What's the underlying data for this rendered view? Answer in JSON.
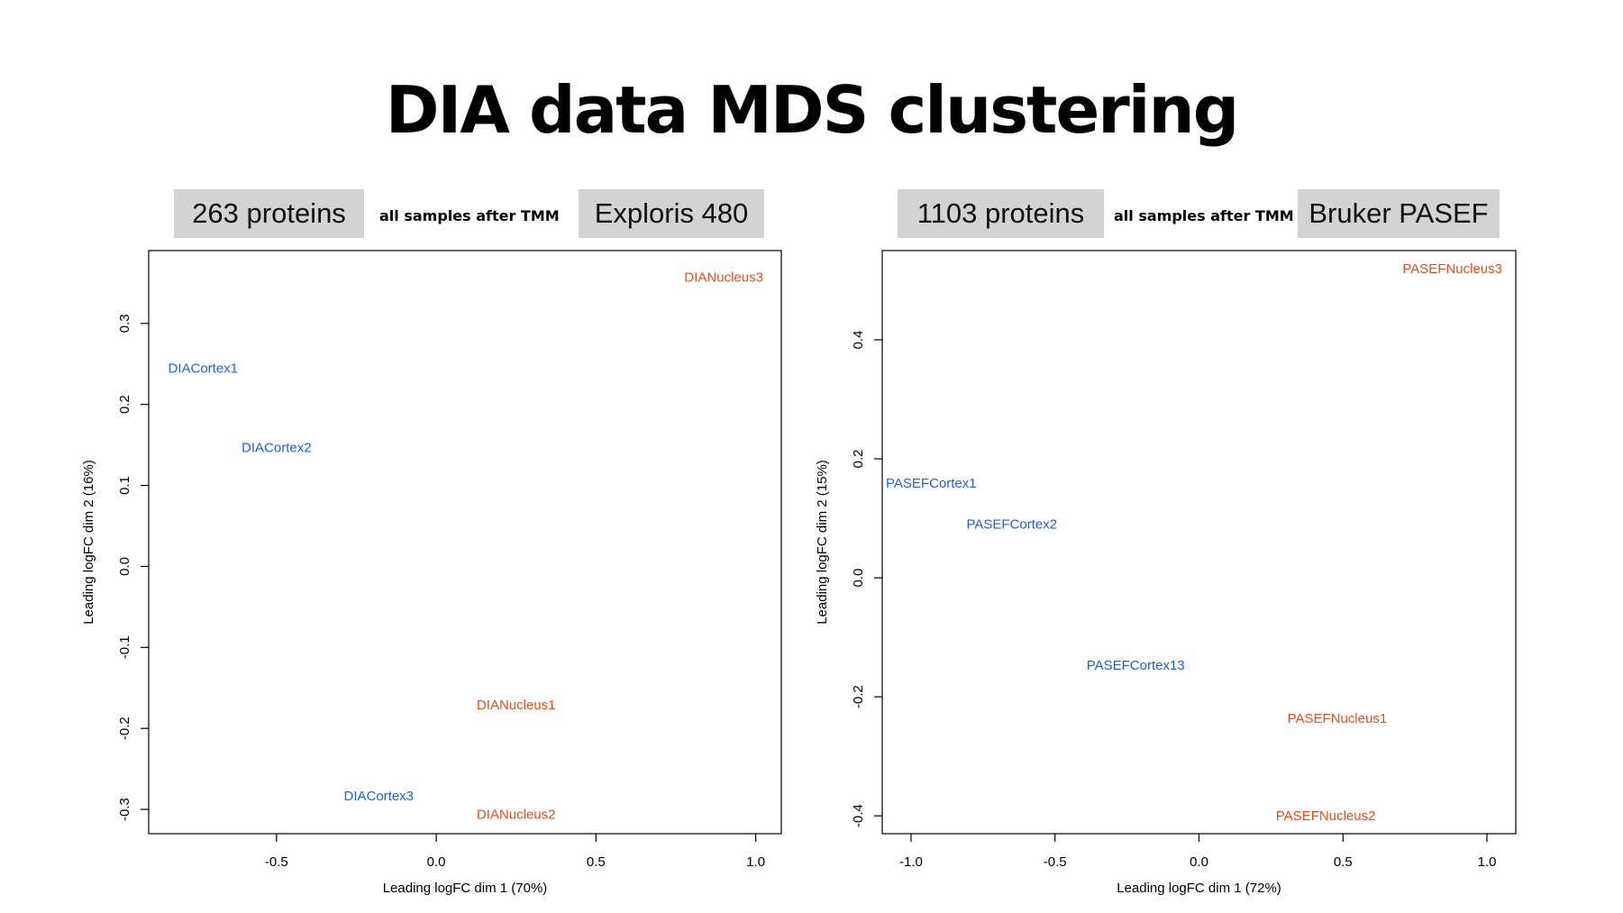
{
  "page": {
    "title": "DIA data MDS clustering"
  },
  "panels": [
    {
      "count_label": "263 proteins",
      "note": "all samples after TMM",
      "instrument_label": "Exploris 480"
    },
    {
      "count_label": "1103 proteins",
      "note": "all samples after TMM",
      "instrument_label": "Bruker PASEF"
    }
  ],
  "colors": {
    "cortex": "#1f5fe0",
    "nucleus": "#f04a1c",
    "tag_bg": "#d3d3d3"
  },
  "chart_data": [
    {
      "type": "scatter",
      "xlabel": "Leading logFC dim 1 (70%)",
      "ylabel": "Leading logFC dim 2 (16%)",
      "xlim": [
        -0.9,
        1.08
      ],
      "ylim": [
        -0.33,
        0.39
      ],
      "xticks": [
        -0.5,
        0.0,
        0.5,
        1.0
      ],
      "xtick_labels": [
        "-0.5",
        "0.0",
        "0.5",
        "1.0"
      ],
      "yticks": [
        -0.3,
        -0.2,
        -0.1,
        0.0,
        0.1,
        0.2,
        0.3
      ],
      "ytick_labels": [
        "-0.3",
        "-0.2",
        "-0.1",
        "0.0",
        "0.1",
        "0.2",
        "0.3"
      ],
      "grid": false,
      "points": [
        {
          "label": "DIACortex1",
          "x": -0.73,
          "y": 0.245,
          "group": "cortex"
        },
        {
          "label": "DIACortex2",
          "x": -0.5,
          "y": 0.147,
          "group": "cortex"
        },
        {
          "label": "DIACortex3",
          "x": -0.18,
          "y": -0.283,
          "group": "cortex"
        },
        {
          "label": "DIANucleus1",
          "x": 0.25,
          "y": -0.171,
          "group": "nucleus"
        },
        {
          "label": "DIANucleus2",
          "x": 0.25,
          "y": -0.306,
          "group": "nucleus"
        },
        {
          "label": "DIANucleus3",
          "x": 0.9,
          "y": 0.357,
          "group": "nucleus"
        }
      ]
    },
    {
      "type": "scatter",
      "xlabel": "Leading logFC dim 1 (72%)",
      "ylabel": "Leading logFC dim 2 (15%)",
      "xlim": [
        -1.1,
        1.1
      ],
      "ylim": [
        -0.43,
        0.55
      ],
      "xticks": [
        -1.0,
        -0.5,
        0.0,
        0.5,
        1.0
      ],
      "xtick_labels": [
        "-1.0",
        "-0.5",
        "0.0",
        "0.5",
        "1.0"
      ],
      "yticks": [
        -0.4,
        -0.2,
        0.0,
        0.2,
        0.4
      ],
      "ytick_labels": [
        "-0.4",
        "-0.2",
        "0.0",
        "0.2",
        "0.4"
      ],
      "grid": false,
      "points": [
        {
          "label": "PASEFCortex1",
          "x": -0.93,
          "y": 0.159,
          "group": "cortex"
        },
        {
          "label": "PASEFCortex2",
          "x": -0.65,
          "y": 0.09,
          "group": "cortex"
        },
        {
          "label": "PASEFCortex13",
          "x": -0.22,
          "y": -0.147,
          "group": "cortex"
        },
        {
          "label": "PASEFNucleus1",
          "x": 0.48,
          "y": -0.236,
          "group": "nucleus"
        },
        {
          "label": "PASEFNucleus2",
          "x": 0.44,
          "y": -0.4,
          "group": "nucleus"
        },
        {
          "label": "PASEFNucleus3",
          "x": 0.88,
          "y": 0.52,
          "group": "nucleus"
        }
      ]
    }
  ]
}
